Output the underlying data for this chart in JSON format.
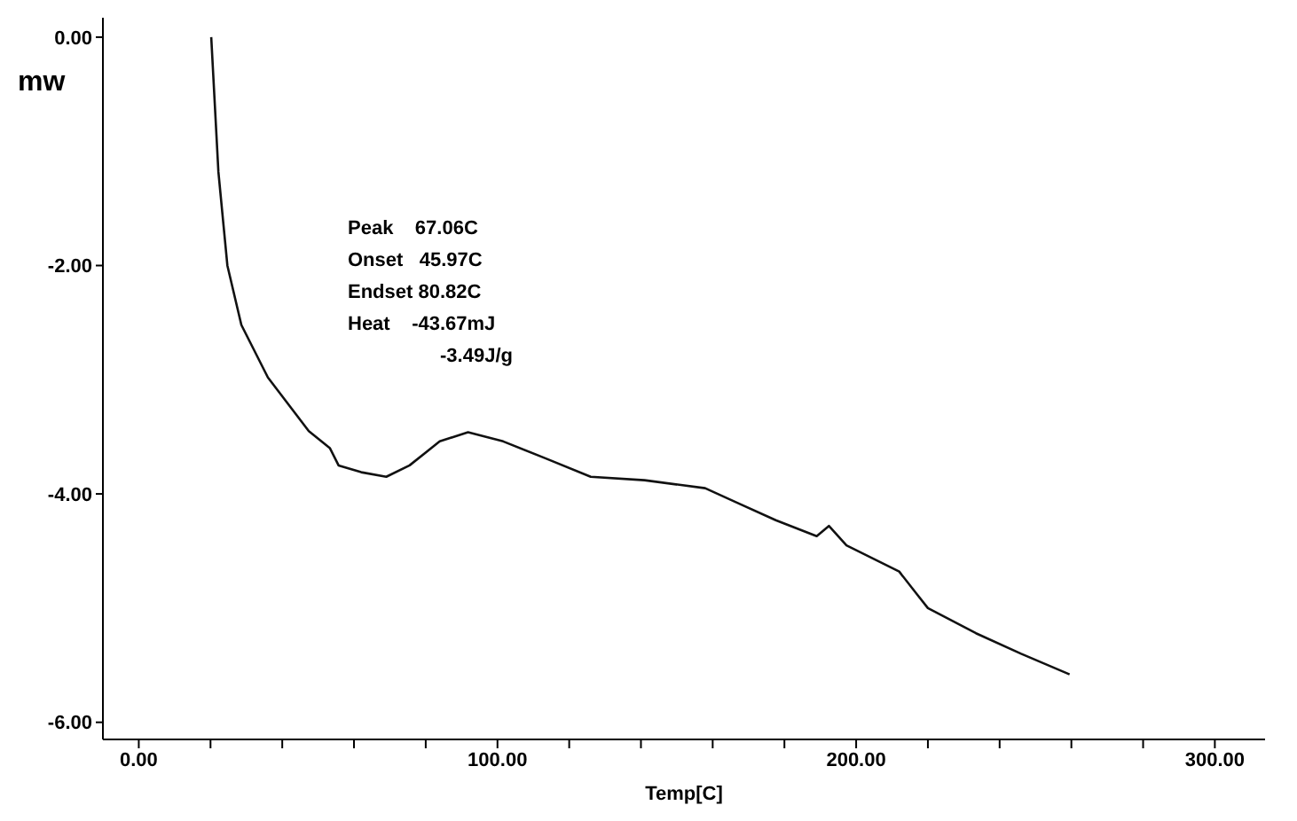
{
  "chart_data": {
    "type": "line",
    "xlabel": "Temp[C]",
    "ylabel": "mw",
    "annotations": [
      "Peak    67.06C",
      "Onset   45.97C",
      "Endset 80.82C",
      "Heat    -43.67mJ",
      "-3.49J/g"
    ],
    "x": [
      20.2,
      22.2,
      24.7,
      28.6,
      36,
      47.4,
      53.3,
      55.7,
      62,
      69,
      75.5,
      83.9,
      91.8,
      101.6,
      113.5,
      126,
      141,
      157.9,
      167,
      177.6,
      189,
      192.4,
      197.3,
      212,
      217,
      220,
      233.4,
      246,
      259.5
    ],
    "series": [
      {
        "color": "#111111",
        "values": [
          0,
          -1.18,
          -2,
          -2.52,
          -2.98,
          -3.45,
          -3.6,
          -3.75,
          -3.81,
          -3.85,
          -3.75,
          -3.54,
          -3.46,
          -3.54,
          -3.69,
          -3.85,
          -3.88,
          -3.95,
          -4.08,
          -4.23,
          -4.37,
          -4.28,
          -4.45,
          -4.68,
          -4.88,
          -5.0,
          -5.22,
          -5.4,
          -5.58
        ]
      }
    ],
    "xlim": [
      -10,
      314
    ],
    "ylim": [
      -6.15,
      0.17
    ],
    "xticks": [
      {
        "value": 0,
        "label": "0.00"
      },
      {
        "value": 20,
        "label": null
      },
      {
        "value": 40,
        "label": null
      },
      {
        "value": 60,
        "label": null
      },
      {
        "value": 80,
        "label": null
      },
      {
        "value": 100,
        "label": "100.00"
      },
      {
        "value": 120,
        "label": null
      },
      {
        "value": 140,
        "label": null
      },
      {
        "value": 160,
        "label": null
      },
      {
        "value": 180,
        "label": null
      },
      {
        "value": 200,
        "label": "200.00"
      },
      {
        "value": 220,
        "label": null
      },
      {
        "value": 240,
        "label": null
      },
      {
        "value": 260,
        "label": null
      },
      {
        "value": 280,
        "label": null
      },
      {
        "value": 300,
        "label": "300.00"
      }
    ],
    "yticks": [
      {
        "value": 0,
        "label": "0.00"
      },
      {
        "value": -2,
        "label": "-2.00"
      },
      {
        "value": -4,
        "label": "-4.00"
      },
      {
        "value": -6,
        "label": "-6.00"
      }
    ],
    "grid": false,
    "legend": false,
    "marker": "none",
    "line_style": "solid"
  }
}
